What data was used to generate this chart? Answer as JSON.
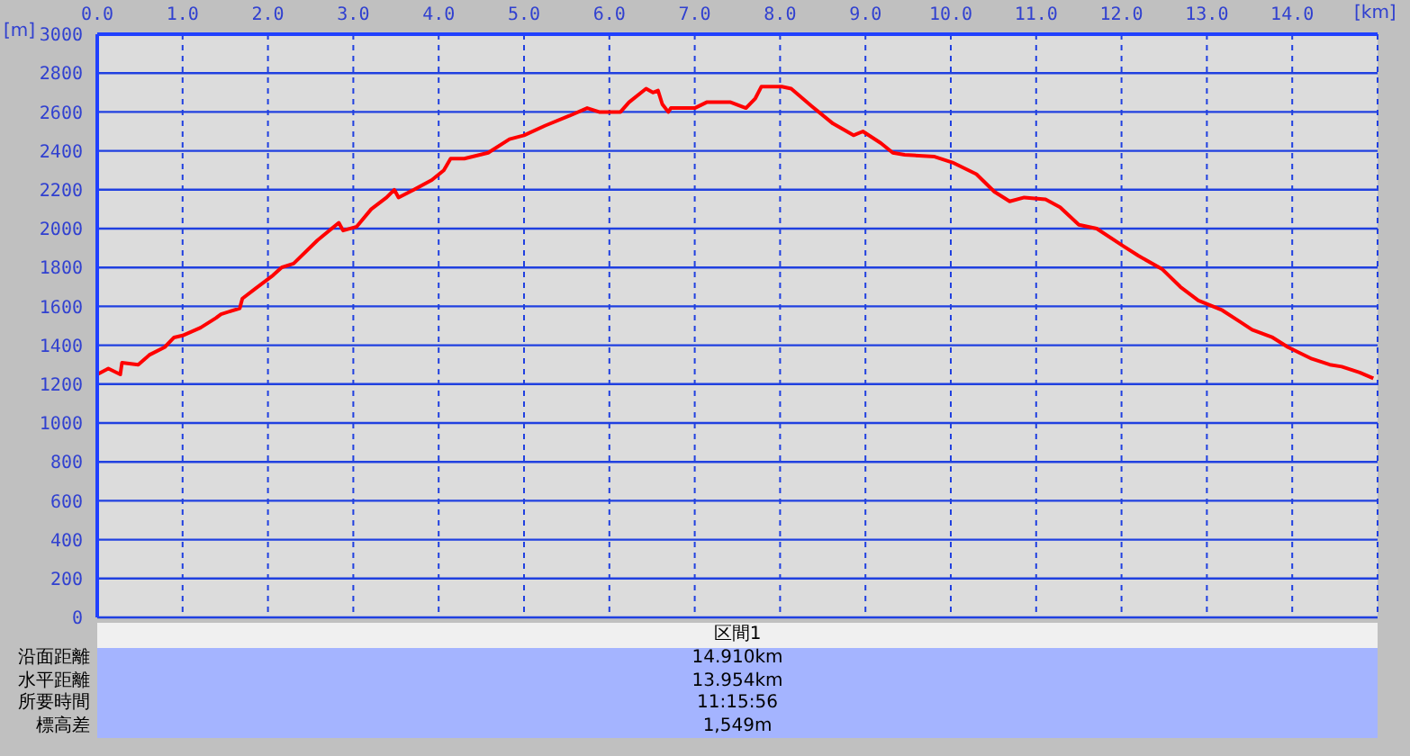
{
  "chart_data": {
    "type": "line",
    "xlabel": "[km]",
    "ylabel": "[m]",
    "xlim": [
      0,
      15
    ],
    "xticks": [
      {
        "value": 0,
        "label": "0.0"
      },
      {
        "value": 1,
        "label": "1.0"
      },
      {
        "value": 2,
        "label": "2.0"
      },
      {
        "value": 3,
        "label": "3.0"
      },
      {
        "value": 4,
        "label": "4.0"
      },
      {
        "value": 5,
        "label": "5.0"
      },
      {
        "value": 6,
        "label": "6.0"
      },
      {
        "value": 7,
        "label": "7.0"
      },
      {
        "value": 8,
        "label": "8.0"
      },
      {
        "value": 9,
        "label": "9.0"
      },
      {
        "value": 10,
        "label": "10.0"
      },
      {
        "value": 11,
        "label": "11.0"
      },
      {
        "value": 12,
        "label": "12.0"
      },
      {
        "value": 13,
        "label": "13.0"
      },
      {
        "value": 14,
        "label": "14.0"
      }
    ],
    "ylim": [
      0,
      3000
    ],
    "yticks": [
      0,
      200,
      400,
      600,
      800,
      1000,
      1200,
      1400,
      1600,
      1800,
      2000,
      2200,
      2400,
      2600,
      2800,
      3000
    ],
    "grid": true,
    "legend": false,
    "marker": "none",
    "line_style": "solid",
    "x": [
      0,
      0.13,
      0.27,
      0.29,
      0.48,
      0.61,
      0.79,
      0.9,
      1.0,
      1.21,
      1.39,
      1.45,
      1.67,
      1.7,
      1.85,
      2.06,
      2.16,
      2.3,
      2.58,
      2.83,
      2.88,
      3.04,
      3.21,
      3.39,
      3.48,
      3.53,
      3.71,
      3.92,
      4.06,
      4.14,
      4.3,
      4.58,
      4.83,
      5.0,
      5.25,
      5.53,
      5.74,
      5.88,
      6.13,
      6.23,
      6.43,
      6.51,
      6.57,
      6.62,
      6.69,
      6.72,
      7.0,
      7.14,
      7.42,
      7.6,
      7.71,
      7.78,
      8.02,
      8.13,
      8.37,
      8.62,
      8.86,
      8.97,
      9.18,
      9.32,
      9.46,
      9.81,
      10.02,
      10.3,
      10.51,
      10.69,
      10.86,
      11.11,
      11.28,
      11.5,
      11.71,
      12.02,
      12.2,
      12.48,
      12.69,
      12.9,
      13.18,
      13.39,
      13.53,
      13.77,
      13.95,
      14.23,
      14.44,
      14.58,
      14.79,
      14.95
    ],
    "series": [
      {
        "color": "#ff0000",
        "values": [
          1250,
          1280,
          1250,
          1310,
          1300,
          1350,
          1390,
          1440,
          1450,
          1490,
          1540,
          1560,
          1590,
          1640,
          1690,
          1760,
          1800,
          1820,
          1940,
          2030,
          1990,
          2010,
          2100,
          2160,
          2200,
          2160,
          2200,
          2250,
          2300,
          2360,
          2360,
          2390,
          2460,
          2480,
          2530,
          2580,
          2620,
          2600,
          2600,
          2650,
          2720,
          2700,
          2710,
          2640,
          2600,
          2620,
          2620,
          2650,
          2650,
          2620,
          2670,
          2730,
          2730,
          2720,
          2630,
          2540,
          2480,
          2500,
          2440,
          2390,
          2380,
          2370,
          2340,
          2280,
          2190,
          2140,
          2160,
          2150,
          2110,
          2020,
          2000,
          1910,
          1860,
          1790,
          1700,
          1630,
          1580,
          1520,
          1480,
          1440,
          1390,
          1330,
          1300,
          1290,
          1260,
          1230
        ]
      }
    ],
    "annotations": [
      "区間1",
      "沿面距離",
      "14.910km",
      "水平距離",
      "13.954km",
      "所要時間",
      "11:15:56",
      "標高差",
      "1,549m"
    ]
  }
}
